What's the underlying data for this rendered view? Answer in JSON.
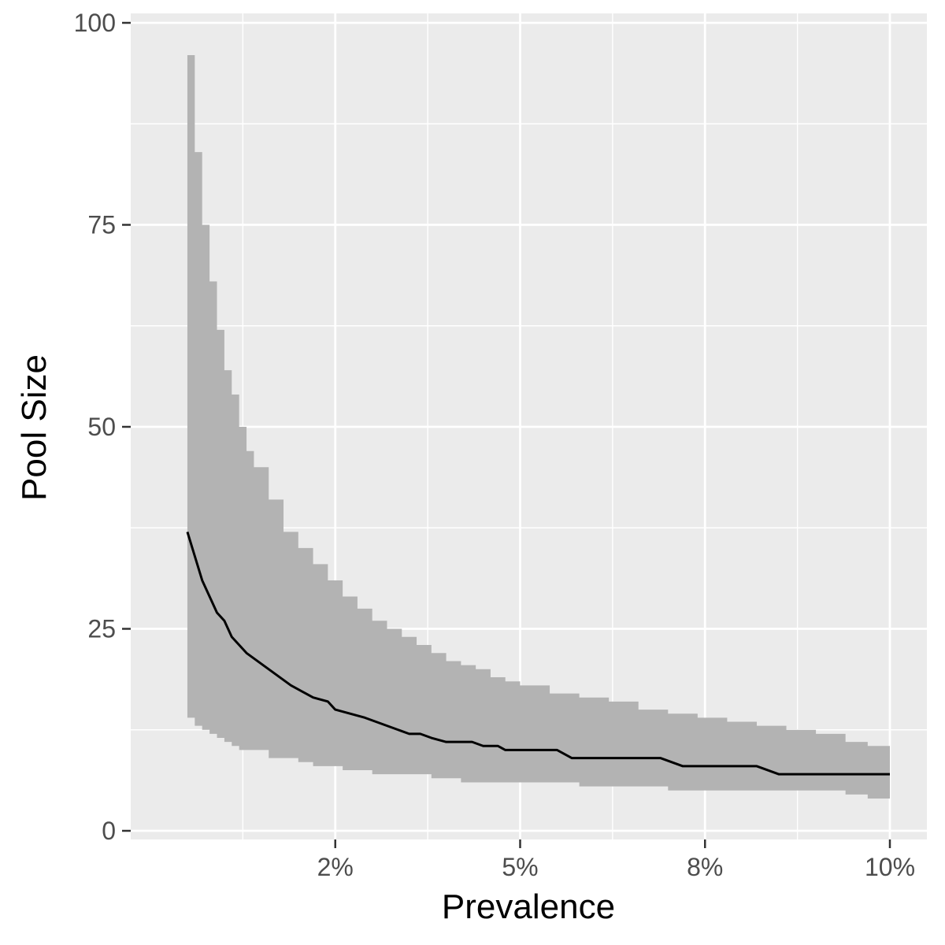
{
  "chart_data": {
    "type": "line",
    "title": "",
    "xlabel": "Prevalence",
    "ylabel": "Pool Size",
    "xlim": [
      0,
      10
    ],
    "ylim": [
      -2.3,
      100.3
    ],
    "x_ticks": [
      {
        "value": 2.5,
        "label": "2%"
      },
      {
        "value": 5.0,
        "label": "5%"
      },
      {
        "value": 7.5,
        "label": "8%"
      },
      {
        "value": 10.0,
        "label": "10%"
      }
    ],
    "y_ticks": [
      {
        "value": 0,
        "label": "0"
      },
      {
        "value": 25,
        "label": "25"
      },
      {
        "value": 50,
        "label": "50"
      },
      {
        "value": 75,
        "label": "75"
      },
      {
        "value": 100,
        "label": "100"
      }
    ],
    "x_minor_grid": [
      1.25,
      3.75,
      6.25,
      8.75
    ],
    "y_minor_grid": [
      12.5,
      37.5,
      62.5,
      87.5
    ],
    "grid": true,
    "legend": "none",
    "colors": {
      "panel": "#ebebeb",
      "grid": "#ffffff",
      "ribbon": "#b3b3b3",
      "line": "#000000"
    },
    "series": [
      {
        "kind": "line",
        "x": [
          0.5,
          0.7,
          0.9,
          1.0,
          1.1,
          1.3,
          1.45,
          1.6,
          1.75,
          1.9,
          2.1,
          2.2,
          2.4,
          2.5,
          2.7,
          2.9,
          3.05,
          3.2,
          3.35,
          3.5,
          3.65,
          3.8,
          4.0,
          4.15,
          4.35,
          4.5,
          4.7,
          4.8,
          5.0,
          5.2,
          5.5,
          5.7,
          6.0,
          6.3,
          6.6,
          6.9,
          7.2,
          7.5,
          7.8,
          8.2,
          8.5,
          8.9,
          9.3,
          9.7,
          10.0
        ],
        "y": [
          37,
          31,
          27,
          26,
          24,
          22,
          21,
          20,
          19,
          18,
          17,
          16.5,
          16,
          15,
          14.5,
          14,
          13.5,
          13,
          12.5,
          12,
          12,
          11.5,
          11,
          11,
          11,
          10.5,
          10.5,
          10,
          10,
          10,
          10,
          9,
          9,
          9,
          9,
          9,
          8,
          8,
          8,
          8,
          7,
          7,
          7,
          7,
          7
        ]
      },
      {
        "kind": "ribbon",
        "x": [
          0.5,
          0.6,
          0.7,
          0.8,
          0.9,
          1.0,
          1.1,
          1.2,
          1.3,
          1.4,
          1.6,
          1.8,
          2.0,
          2.2,
          2.4,
          2.6,
          2.8,
          3.0,
          3.2,
          3.4,
          3.6,
          3.8,
          4.0,
          4.2,
          4.4,
          4.6,
          4.8,
          5.0,
          5.4,
          5.8,
          6.2,
          6.6,
          7.0,
          7.4,
          7.8,
          8.2,
          8.6,
          9.0,
          9.4,
          9.7,
          10.0
        ],
        "upper": [
          96,
          84,
          75,
          68,
          62,
          57,
          54,
          50,
          47,
          45,
          41,
          37,
          35,
          33,
          31,
          29,
          27.5,
          26,
          25,
          24,
          23,
          22,
          21,
          20.5,
          20,
          19,
          18.5,
          18,
          17,
          16.5,
          16,
          15,
          14.5,
          14,
          13.5,
          13,
          12.5,
          12,
          11,
          10.5,
          10
        ],
        "lower": [
          14,
          13,
          12.5,
          12,
          11.5,
          11,
          10.5,
          10,
          10,
          10,
          9,
          9,
          8.5,
          8,
          8,
          7.5,
          7.5,
          7,
          7,
          7,
          7,
          6.5,
          6.5,
          6,
          6,
          6,
          6,
          6,
          6,
          5.5,
          5.5,
          5.5,
          5,
          5,
          5,
          5,
          5,
          5,
          4.5,
          4,
          4
        ]
      }
    ]
  }
}
